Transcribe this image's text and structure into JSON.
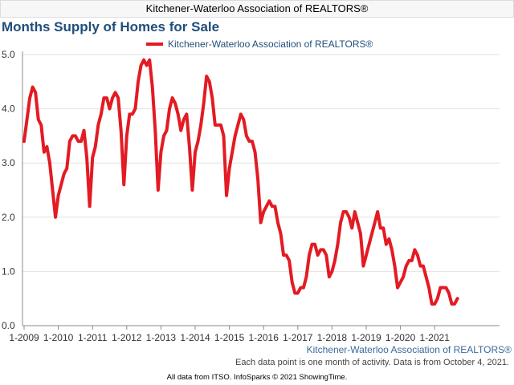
{
  "header": {
    "title": "Kitchener-Waterloo Association of REALTORS®"
  },
  "chart_data": {
    "type": "line",
    "title": "Months Supply of Homes for Sale",
    "legend": {
      "position": "top"
    },
    "series": [
      {
        "name": "Kitchener-Waterloo Association of REALTORS®",
        "color": "#e31b23",
        "start": "2009-01",
        "values": [
          3.4,
          3.8,
          4.2,
          4.4,
          4.3,
          3.8,
          3.7,
          3.2,
          3.3,
          3.0,
          2.5,
          2.0,
          2.4,
          2.6,
          2.8,
          2.9,
          3.4,
          3.5,
          3.5,
          3.4,
          3.4,
          3.6,
          3.1,
          2.2,
          3.1,
          3.3,
          3.7,
          3.9,
          4.2,
          4.2,
          4.0,
          4.2,
          4.3,
          4.2,
          3.6,
          2.6,
          3.5,
          3.9,
          3.9,
          4.0,
          4.5,
          4.8,
          4.9,
          4.8,
          4.9,
          4.4,
          3.6,
          2.5,
          3.2,
          3.5,
          3.6,
          4.0,
          4.2,
          4.1,
          3.9,
          3.6,
          3.8,
          3.9,
          3.3,
          2.5,
          3.2,
          3.4,
          3.7,
          4.1,
          4.6,
          4.5,
          4.2,
          3.7,
          3.7,
          3.7,
          3.5,
          2.4,
          2.9,
          3.2,
          3.5,
          3.7,
          3.9,
          3.8,
          3.5,
          3.4,
          3.4,
          3.2,
          2.7,
          1.9,
          2.1,
          2.2,
          2.3,
          2.2,
          2.2,
          1.9,
          1.7,
          1.3,
          1.3,
          1.2,
          0.8,
          0.6,
          0.6,
          0.7,
          0.7,
          0.9,
          1.3,
          1.5,
          1.5,
          1.3,
          1.4,
          1.4,
          1.3,
          0.9,
          1.0,
          1.2,
          1.5,
          1.9,
          2.1,
          2.1,
          2.0,
          1.8,
          2.1,
          1.9,
          1.7,
          1.1,
          1.3,
          1.5,
          1.7,
          1.9,
          2.1,
          1.8,
          1.8,
          1.5,
          1.6,
          1.4,
          1.1,
          0.7,
          0.8,
          0.9,
          1.1,
          1.2,
          1.2,
          1.4,
          1.3,
          1.1,
          1.1,
          0.9,
          0.7,
          0.4,
          0.4,
          0.5,
          0.7,
          0.7,
          0.7,
          0.6,
          0.4,
          0.4,
          0.5
        ]
      }
    ],
    "x_ticks": [
      "1-2009",
      "1-2010",
      "1-2011",
      "1-2012",
      "1-2013",
      "1-2014",
      "1-2015",
      "1-2016",
      "1-2017",
      "1-2018",
      "1-2019",
      "1-2020",
      "1-2021"
    ],
    "y_ticks": [
      "0.0",
      "1.0",
      "2.0",
      "3.0",
      "4.0",
      "5.0"
    ],
    "ylim": [
      0,
      5
    ],
    "grid": {
      "horizontal": true,
      "vertical": false
    },
    "source_label": "Kitchener-Waterloo Association of REALTORS®"
  },
  "footnote": "Each data point is one month of activity. Data is from October 4, 2021.",
  "copyright": "All data from ITSO. InfoSparks © 2021 ShowingTime."
}
